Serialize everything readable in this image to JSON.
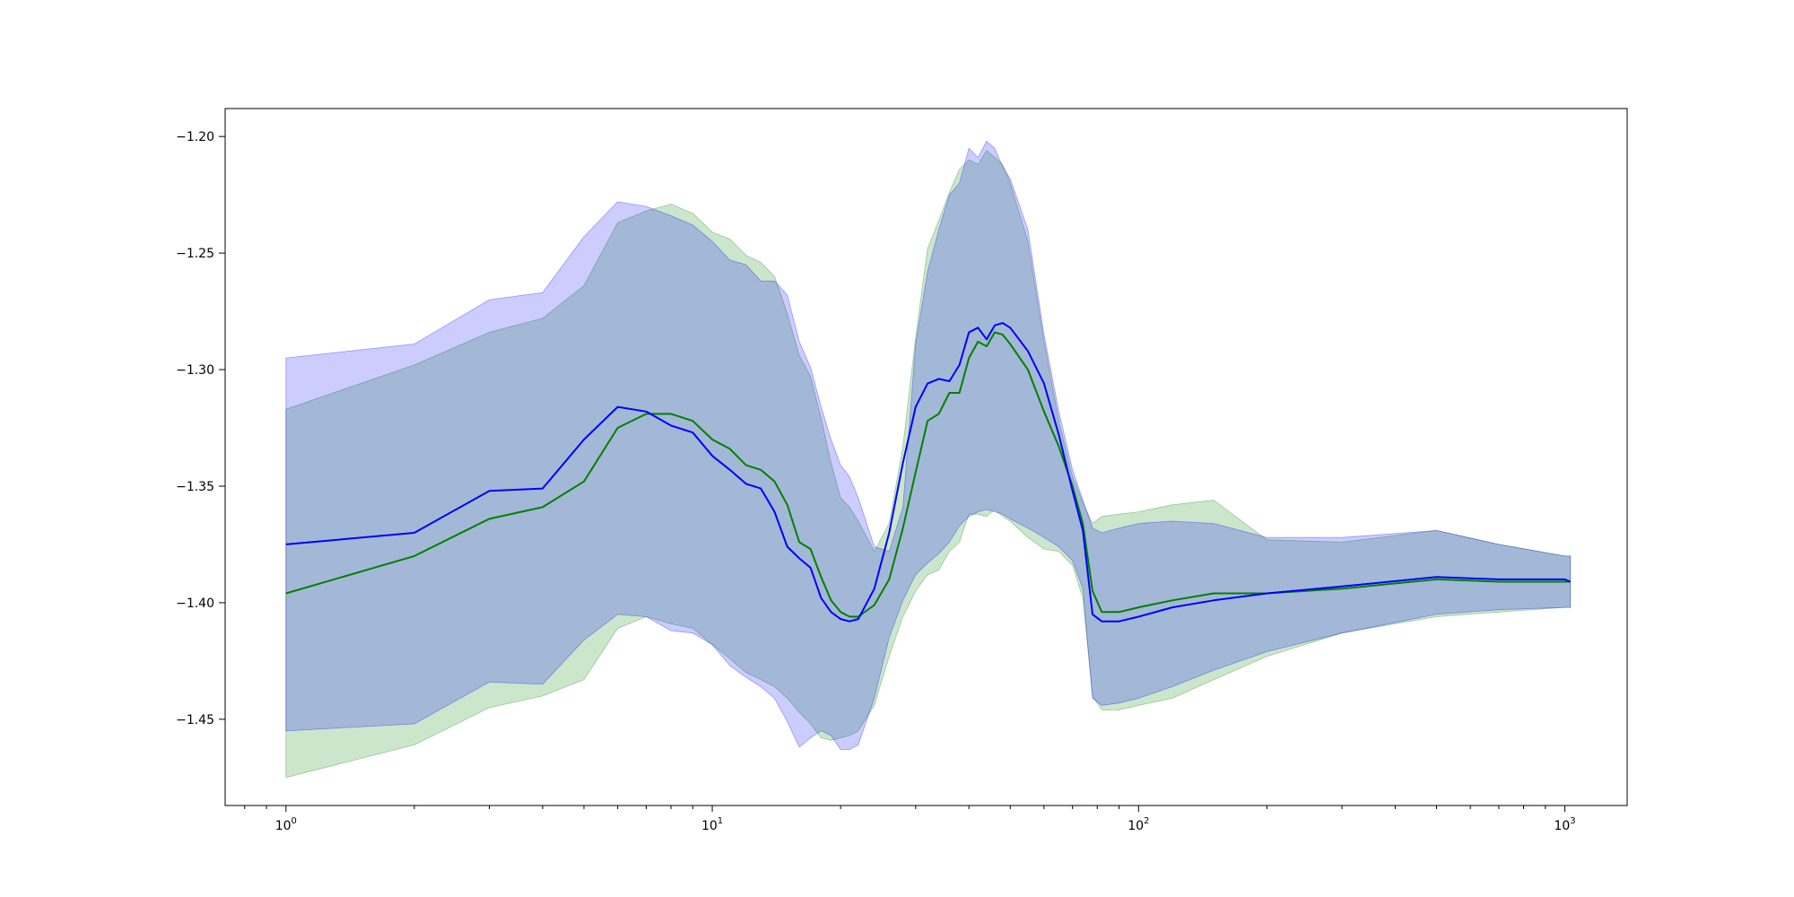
{
  "chart_data": {
    "type": "line",
    "title": "",
    "xlabel": "",
    "ylabel": "",
    "xscale": "log",
    "xlim": [
      0.72,
      1400
    ],
    "ylim": [
      -1.487,
      -1.188
    ],
    "grid": false,
    "legend": "none",
    "x_ticks": [
      {
        "value": 1,
        "base": "10",
        "exp": "0"
      },
      {
        "value": 10,
        "base": "10",
        "exp": "1"
      },
      {
        "value": 100,
        "base": "10",
        "exp": "2"
      },
      {
        "value": 1000,
        "base": "10",
        "exp": "3"
      }
    ],
    "y_ticks": [
      {
        "value": -1.2,
        "label": "−1.20"
      },
      {
        "value": -1.25,
        "label": "−1.25"
      },
      {
        "value": -1.3,
        "label": "−1.30"
      },
      {
        "value": -1.35,
        "label": "−1.35"
      },
      {
        "value": -1.4,
        "label": "−1.40"
      },
      {
        "value": -1.45,
        "label": "−1.45"
      }
    ],
    "series": [
      {
        "color": "#008000",
        "band_color": "#008000",
        "band_opacity": 0.2,
        "x": [
          1,
          2,
          3,
          4,
          5,
          6,
          7,
          8,
          9,
          10,
          11,
          12,
          13,
          14,
          15,
          16,
          17,
          18,
          19,
          20,
          21,
          22,
          24,
          26,
          28,
          30,
          32,
          34,
          36,
          38,
          40,
          42,
          44,
          46,
          48,
          50,
          55,
          60,
          65,
          70,
          74,
          78,
          82,
          90,
          100,
          120,
          150,
          200,
          300,
          500,
          700,
          1000,
          1030
        ],
        "y": [
          -1.396,
          -1.38,
          -1.364,
          -1.359,
          -1.348,
          -1.325,
          -1.319,
          -1.319,
          -1.322,
          -1.33,
          -1.334,
          -1.341,
          -1.343,
          -1.348,
          -1.358,
          -1.374,
          -1.377,
          -1.389,
          -1.399,
          -1.404,
          -1.406,
          -1.406,
          -1.401,
          -1.39,
          -1.368,
          -1.344,
          -1.322,
          -1.319,
          -1.31,
          -1.31,
          -1.295,
          -1.288,
          -1.29,
          -1.284,
          -1.285,
          -1.289,
          -1.3,
          -1.318,
          -1.333,
          -1.35,
          -1.366,
          -1.395,
          -1.404,
          -1.404,
          -1.402,
          -1.399,
          -1.396,
          -1.396,
          -1.394,
          -1.39,
          -1.391,
          -1.391,
          -1.391
        ],
        "upper": [
          -1.317,
          -1.298,
          -1.284,
          -1.278,
          -1.264,
          -1.237,
          -1.232,
          -1.229,
          -1.233,
          -1.241,
          -1.244,
          -1.251,
          -1.254,
          -1.26,
          -1.276,
          -1.294,
          -1.303,
          -1.321,
          -1.34,
          -1.355,
          -1.359,
          -1.365,
          -1.378,
          -1.366,
          -1.333,
          -1.286,
          -1.248,
          -1.236,
          -1.224,
          -1.214,
          -1.21,
          -1.212,
          -1.206,
          -1.209,
          -1.212,
          -1.22,
          -1.245,
          -1.288,
          -1.322,
          -1.346,
          -1.357,
          -1.366,
          -1.363,
          -1.362,
          -1.361,
          -1.358,
          -1.356,
          -1.373,
          -1.374,
          -1.369,
          -1.375,
          -1.38,
          -1.38
        ],
        "lower": [
          -1.475,
          -1.461,
          -1.445,
          -1.44,
          -1.433,
          -1.411,
          -1.406,
          -1.409,
          -1.411,
          -1.418,
          -1.424,
          -1.43,
          -1.433,
          -1.436,
          -1.441,
          -1.447,
          -1.452,
          -1.458,
          -1.459,
          -1.458,
          -1.457,
          -1.455,
          -1.444,
          -1.423,
          -1.406,
          -1.395,
          -1.388,
          -1.386,
          -1.378,
          -1.374,
          -1.362,
          -1.362,
          -1.363,
          -1.36,
          -1.363,
          -1.365,
          -1.372,
          -1.377,
          -1.378,
          -1.384,
          -1.398,
          -1.44,
          -1.446,
          -1.446,
          -1.444,
          -1.441,
          -1.433,
          -1.423,
          -1.413,
          -1.406,
          -1.404,
          -1.402,
          -1.402
        ]
      },
      {
        "color": "#0000ff",
        "band_color": "#0000ff",
        "band_opacity": 0.2,
        "x": [
          1,
          2,
          3,
          4,
          5,
          6,
          7,
          8,
          9,
          10,
          11,
          12,
          13,
          14,
          15,
          16,
          17,
          18,
          19,
          20,
          21,
          22,
          24,
          26,
          28,
          30,
          32,
          34,
          36,
          38,
          40,
          42,
          44,
          46,
          48,
          50,
          55,
          60,
          65,
          70,
          74,
          78,
          82,
          90,
          100,
          120,
          150,
          200,
          300,
          500,
          700,
          1000,
          1030
        ],
        "y": [
          -1.375,
          -1.37,
          -1.352,
          -1.351,
          -1.33,
          -1.316,
          -1.318,
          -1.324,
          -1.327,
          -1.337,
          -1.343,
          -1.349,
          -1.351,
          -1.361,
          -1.376,
          -1.381,
          -1.385,
          -1.398,
          -1.404,
          -1.407,
          -1.408,
          -1.407,
          -1.394,
          -1.37,
          -1.34,
          -1.316,
          -1.306,
          -1.304,
          -1.305,
          -1.298,
          -1.284,
          -1.282,
          -1.287,
          -1.281,
          -1.28,
          -1.282,
          -1.292,
          -1.306,
          -1.328,
          -1.352,
          -1.369,
          -1.405,
          -1.408,
          -1.408,
          -1.406,
          -1.402,
          -1.399,
          -1.396,
          -1.393,
          -1.389,
          -1.39,
          -1.39,
          -1.391
        ],
        "upper": [
          -1.295,
          -1.289,
          -1.27,
          -1.267,
          -1.243,
          -1.228,
          -1.23,
          -1.234,
          -1.238,
          -1.245,
          -1.253,
          -1.255,
          -1.262,
          -1.262,
          -1.268,
          -1.288,
          -1.299,
          -1.316,
          -1.33,
          -1.341,
          -1.346,
          -1.355,
          -1.376,
          -1.378,
          -1.359,
          -1.289,
          -1.258,
          -1.24,
          -1.225,
          -1.22,
          -1.205,
          -1.209,
          -1.202,
          -1.205,
          -1.213,
          -1.218,
          -1.24,
          -1.285,
          -1.318,
          -1.343,
          -1.356,
          -1.368,
          -1.37,
          -1.368,
          -1.366,
          -1.365,
          -1.366,
          -1.372,
          -1.372,
          -1.369,
          -1.375,
          -1.38,
          -1.38
        ],
        "lower": [
          -1.455,
          -1.452,
          -1.434,
          -1.435,
          -1.416,
          -1.405,
          -1.406,
          -1.412,
          -1.413,
          -1.418,
          -1.427,
          -1.432,
          -1.436,
          -1.441,
          -1.451,
          -1.462,
          -1.458,
          -1.455,
          -1.457,
          -1.463,
          -1.463,
          -1.461,
          -1.441,
          -1.415,
          -1.399,
          -1.388,
          -1.383,
          -1.379,
          -1.374,
          -1.367,
          -1.363,
          -1.361,
          -1.36,
          -1.361,
          -1.362,
          -1.364,
          -1.368,
          -1.372,
          -1.376,
          -1.382,
          -1.394,
          -1.441,
          -1.444,
          -1.443,
          -1.441,
          -1.436,
          -1.429,
          -1.421,
          -1.413,
          -1.405,
          -1.403,
          -1.402,
          -1.402
        ]
      }
    ]
  }
}
